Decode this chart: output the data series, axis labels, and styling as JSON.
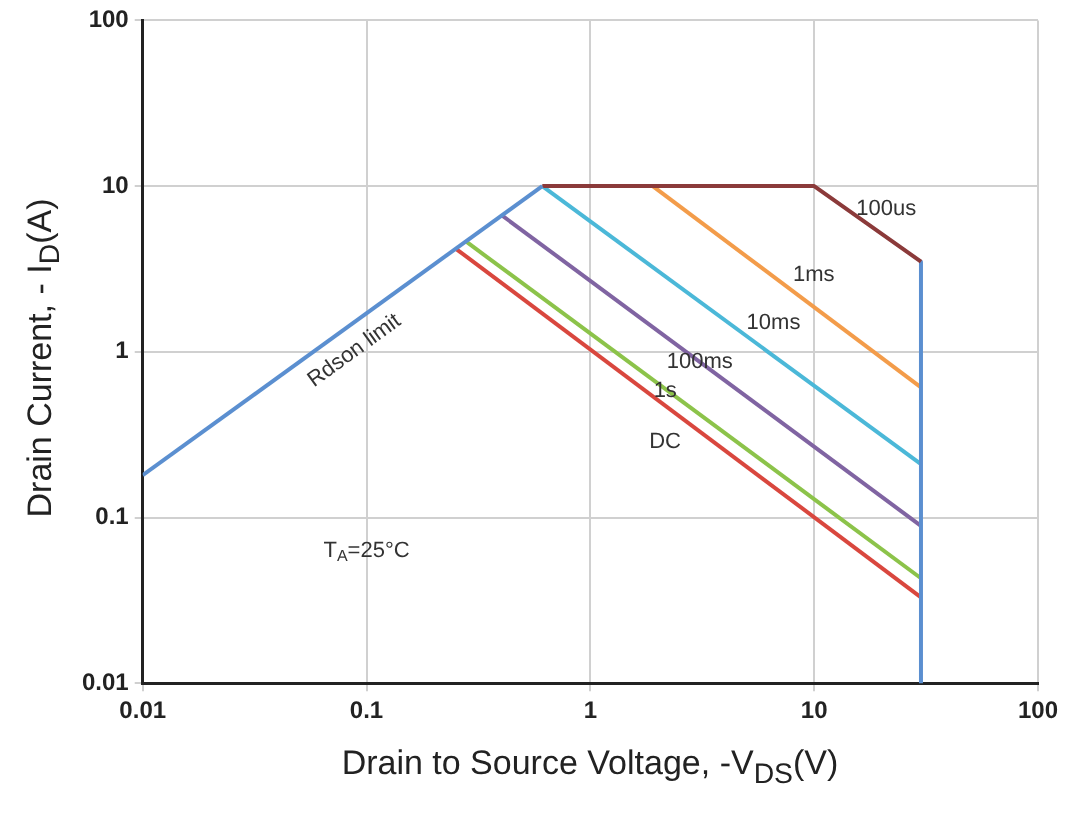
{
  "chart_data": {
    "type": "line",
    "xlabel": "Drain to Source Voltage, -V$_{DS}$(V)",
    "ylabel": "Drain Current, - I$_{D}$(A)",
    "log": "xy",
    "grid": true,
    "legend": false,
    "marker": "none",
    "line_style": "solid",
    "xlim": [
      0.01,
      100
    ],
    "xticks": [
      0.01,
      0.1,
      1,
      10,
      100
    ],
    "ylim": [
      0.01,
      100
    ],
    "yticks": [
      0.01,
      0.1,
      1,
      10,
      100
    ],
    "series": [
      {
        "name": "Rdson limit",
        "color": "#5b8fd0",
        "x": [
          0.01,
          0.61
        ],
        "values": [
          0.18,
          10
        ]
      },
      {
        "name": "100us",
        "color": "#8b3a3a",
        "x": [
          0.61,
          10,
          30
        ],
        "values": [
          10,
          10,
          3.5
        ]
      },
      {
        "color": "#5b8fd0",
        "x": [
          30,
          30
        ],
        "values": [
          3.5,
          0.01
        ]
      },
      {
        "name": "1ms",
        "color": "#f39c4a",
        "x": [
          1.9,
          30
        ],
        "values": [
          10,
          0.61
        ]
      },
      {
        "name": "10ms",
        "color": "#4bb8d8",
        "x": [
          0.61,
          30
        ],
        "values": [
          10,
          0.21
        ]
      },
      {
        "name": "100ms",
        "color": "#8064a2",
        "x": [
          0.4,
          30
        ],
        "values": [
          6.7,
          0.089
        ]
      },
      {
        "name": "1s",
        "color": "#8cc34a",
        "x": [
          0.28,
          30
        ],
        "values": [
          4.6,
          0.043
        ]
      },
      {
        "name": "DC",
        "color": "#d9473e",
        "x": [
          0.25,
          30
        ],
        "values": [
          4.2,
          0.033
        ]
      }
    ],
    "annotations": [
      "T$_{A}$=25°C"
    ]
  }
}
